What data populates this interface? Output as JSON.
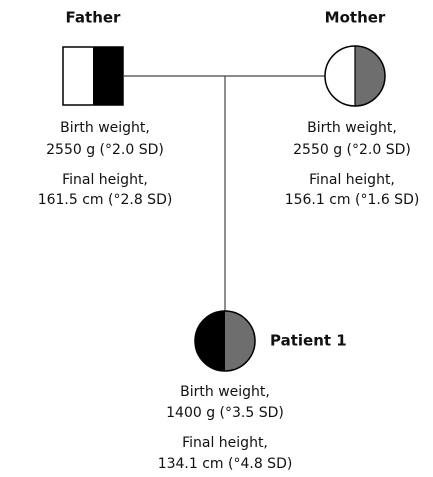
{
  "nodes": [
    {
      "label": "Father",
      "lines": [
        "Birth weight,",
        "2550 g (°2.0 SD)",
        "Final height,",
        "161.5 cm (°2.8 SD)"
      ]
    },
    {
      "label": "Mother",
      "lines": [
        "Birth weight,",
        "2550 g (°2.0 SD)",
        "Final height,",
        "156.1 cm (°1.6 SD)"
      ]
    },
    {
      "label": "Patient 1",
      "lines": [
        "Birth weight,",
        "1400 g (°3.5 SD)",
        "Final height,",
        "134.1 cm (°4.8 SD)"
      ]
    }
  ]
}
